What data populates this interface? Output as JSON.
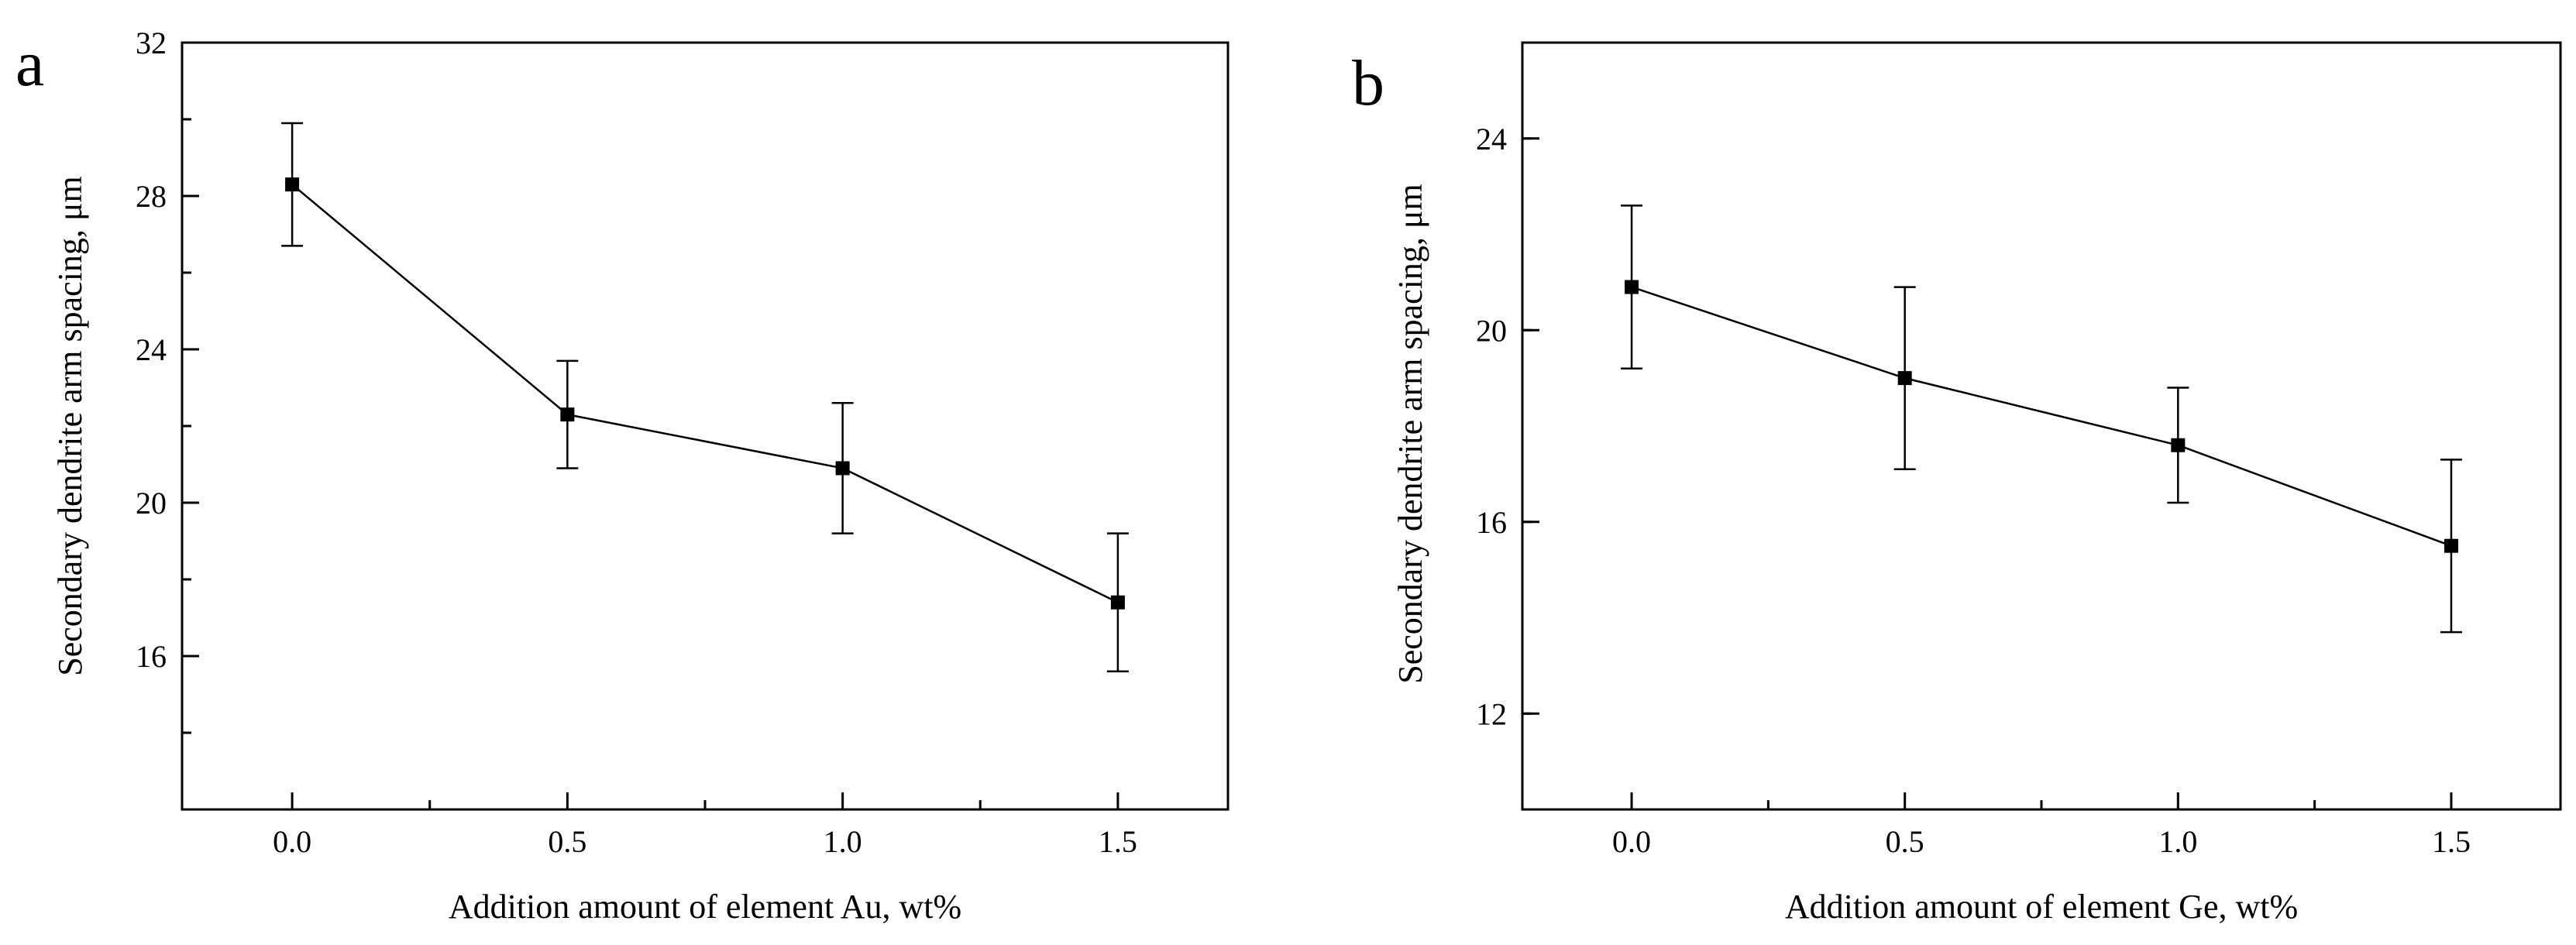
{
  "chart_data": [
    {
      "type": "line",
      "panel_label": "a",
      "xlabel": "Addition amount of element Au, wt%",
      "ylabel": "Secondary dendrite arm spacing, μm",
      "x": [
        0.0,
        0.5,
        1.0,
        1.5
      ],
      "values": [
        28.3,
        22.3,
        20.9,
        17.4
      ],
      "error": [
        1.6,
        1.4,
        1.7,
        1.8
      ],
      "xlim": [
        -0.2,
        1.7
      ],
      "ylim": [
        12,
        32
      ],
      "xticks": [
        0.0,
        0.5,
        1.0,
        1.5
      ],
      "xtick_labels": [
        "0.0",
        "0.5",
        "1.0",
        "1.5"
      ],
      "yticks": [
        16,
        20,
        24,
        28,
        32
      ],
      "ytick_labels": [
        "16",
        "20",
        "24",
        "28",
        "32"
      ],
      "grid": false,
      "marker": "square"
    },
    {
      "type": "line",
      "panel_label": "b",
      "xlabel": "Addition amount of element Ge, wt%",
      "ylabel": "Secondary dendrite arm spacing, μm",
      "x": [
        0.0,
        0.5,
        1.0,
        1.5
      ],
      "values": [
        20.9,
        19.0,
        17.6,
        15.5
      ],
      "error": [
        1.7,
        1.9,
        1.2,
        1.8
      ],
      "xlim": [
        -0.2,
        1.7
      ],
      "ylim": [
        10,
        26
      ],
      "xticks": [
        0.0,
        0.5,
        1.0,
        1.5
      ],
      "xtick_labels": [
        "0.0",
        "0.5",
        "1.0",
        "1.5"
      ],
      "yticks": [
        12,
        16,
        20,
        24
      ],
      "ytick_labels": [
        "12",
        "16",
        "20",
        "24"
      ],
      "grid": false,
      "marker": "square"
    }
  ]
}
